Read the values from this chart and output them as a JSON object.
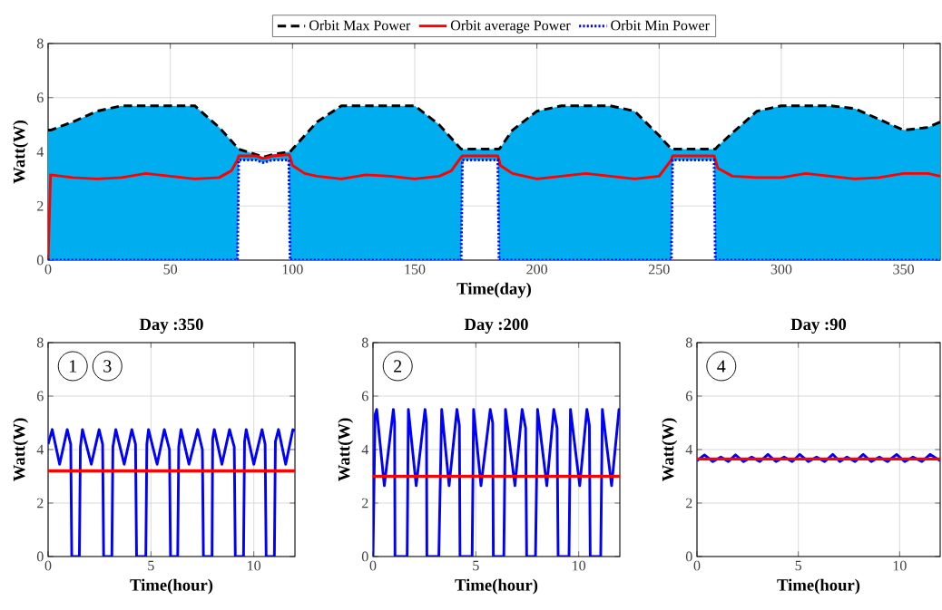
{
  "chart_data": [
    {
      "type": "line",
      "xlabel": "Time(day)",
      "ylabel": "Watt(W)",
      "xlim": [
        0,
        365
      ],
      "ylim": [
        0,
        8
      ],
      "xticks": [
        0,
        50,
        100,
        150,
        200,
        250,
        300,
        350
      ],
      "yticks": [
        0,
        2,
        4,
        6,
        8
      ],
      "grid": true,
      "legend": "top",
      "x": [
        0,
        1,
        10,
        20,
        30,
        40,
        50,
        60,
        70,
        75,
        77.5,
        78,
        85,
        88,
        92,
        98.5,
        99,
        100,
        105,
        110,
        120,
        130,
        140,
        150,
        160,
        165,
        169,
        169.5,
        175,
        180,
        184,
        184.5,
        185,
        190,
        200,
        210,
        220,
        230,
        240,
        250,
        255,
        255.5,
        260,
        265,
        272.5,
        273,
        274,
        280,
        290,
        300,
        310,
        320,
        330,
        340,
        350,
        360,
        365
      ],
      "series": [
        {
          "name": "Orbit Max Power",
          "color": "#000000",
          "line_style": "dashed",
          "values": [
            4.8,
            4.8,
            5.1,
            5.5,
            5.7,
            5.7,
            5.7,
            5.7,
            4.9,
            4.4,
            4.15,
            4.1,
            3.9,
            3.8,
            3.9,
            4.0,
            4.0,
            4.1,
            4.6,
            5.1,
            5.7,
            5.7,
            5.7,
            5.7,
            5.0,
            4.5,
            4.1,
            4.1,
            4.1,
            4.1,
            4.1,
            4.1,
            4.15,
            4.8,
            5.5,
            5.7,
            5.7,
            5.7,
            5.5,
            4.6,
            4.1,
            4.1,
            4.1,
            4.1,
            4.1,
            4.1,
            4.2,
            4.7,
            5.5,
            5.7,
            5.7,
            5.7,
            5.6,
            5.2,
            4.8,
            4.9,
            5.1
          ]
        },
        {
          "name": "Orbit average Power",
          "color": "#ff0000",
          "line_style": "solid",
          "lower": [
            0,
            0,
            0,
            0,
            0,
            0,
            0,
            0,
            0,
            0,
            0,
            3.7,
            3.7,
            3.6,
            3.7,
            3.7,
            0,
            0,
            0,
            0,
            0,
            0,
            0,
            0,
            0,
            0,
            0,
            3.7,
            3.7,
            3.7,
            3.7,
            0,
            0,
            0,
            0,
            0,
            0,
            0,
            0,
            0,
            0,
            3.7,
            3.7,
            3.7,
            3.7,
            0,
            0,
            0,
            0,
            0,
            0,
            0,
            0,
            0,
            0,
            0,
            0
          ],
          "upper": [
            4.8,
            4.8,
            5.1,
            5.5,
            5.7,
            5.7,
            5.7,
            5.7,
            4.9,
            4.4,
            4.15,
            4.1,
            3.9,
            3.8,
            3.9,
            4.0,
            4.0,
            4.1,
            4.6,
            5.1,
            5.7,
            5.7,
            5.7,
            5.7,
            5.0,
            4.5,
            4.1,
            4.1,
            4.1,
            4.1,
            4.1,
            4.1,
            4.15,
            4.8,
            5.5,
            5.7,
            5.7,
            5.7,
            5.5,
            4.6,
            4.1,
            4.1,
            4.1,
            4.1,
            4.1,
            4.1,
            4.2,
            4.7,
            5.5,
            5.7,
            5.7,
            5.7,
            5.6,
            5.2,
            4.8,
            4.9,
            5.1
          ],
          "values": [
            0,
            3.15,
            3.05,
            3.0,
            3.05,
            3.2,
            3.1,
            3.0,
            3.05,
            3.3,
            3.7,
            3.85,
            3.85,
            3.75,
            3.85,
            3.9,
            3.8,
            3.5,
            3.2,
            3.1,
            3.0,
            3.15,
            3.1,
            3.0,
            3.1,
            3.3,
            3.8,
            3.85,
            3.85,
            3.85,
            3.85,
            3.7,
            3.5,
            3.2,
            3.0,
            3.1,
            3.2,
            3.1,
            3.0,
            3.1,
            3.7,
            3.85,
            3.85,
            3.85,
            3.85,
            3.7,
            3.4,
            3.1,
            3.05,
            3.05,
            3.2,
            3.1,
            3.0,
            3.05,
            3.2,
            3.2,
            3.1
          ]
        },
        {
          "name": "Orbit Min Power",
          "color": "#0000ff",
          "line_style": "dotted",
          "values": [
            0,
            0,
            0,
            0,
            0,
            0,
            0,
            0,
            0,
            0,
            0,
            3.7,
            3.7,
            3.6,
            3.7,
            3.7,
            0,
            0,
            0,
            0,
            0,
            0,
            0,
            0,
            0,
            0,
            0,
            3.7,
            3.7,
            3.7,
            3.7,
            0,
            0,
            0,
            0,
            0,
            0,
            0,
            0,
            0,
            0,
            3.7,
            3.7,
            3.7,
            3.7,
            0,
            0,
            0,
            0,
            0,
            0,
            0,
            0,
            0,
            0,
            0,
            0
          ]
        }
      ]
    },
    {
      "type": "line",
      "title": "Day :350",
      "xlabel": "Time(hour)",
      "ylabel": "Watt(W)",
      "xlim": [
        0,
        12
      ],
      "ylim": [
        0,
        8
      ],
      "xticks": [
        0,
        5,
        10
      ],
      "yticks": [
        0,
        2,
        4,
        6,
        8
      ],
      "grid": true,
      "annotations": [
        "1",
        "3"
      ],
      "series": [
        {
          "color": "#0000ff",
          "x": [
            0,
            0.2,
            0.56,
            0.93,
            1.1,
            1.15,
            1.52,
            1.57,
            1.67,
            2.1,
            2.48,
            2.65,
            2.7,
            3.1,
            3.15,
            3.29,
            3.7,
            4.07,
            4.25,
            4.3,
            4.75,
            4.8,
            4.88,
            5.3,
            5.65,
            5.9,
            5.95,
            6.3,
            6.35,
            6.46,
            6.85,
            7.27,
            7.5,
            7.55,
            7.97,
            8.0,
            8.08,
            8.45,
            8.82,
            9.05,
            9.1,
            9.5,
            9.55,
            9.63,
            10.0,
            10.4,
            10.55,
            10.6,
            11.0,
            11.05,
            11.2,
            11.55,
            11.9,
            12
          ],
          "values": [
            4.2,
            4.75,
            3.45,
            4.75,
            4.2,
            0,
            0,
            4.1,
            4.75,
            3.45,
            4.75,
            4.2,
            0,
            0,
            4.1,
            4.75,
            3.45,
            4.75,
            4.2,
            0,
            0,
            4.2,
            4.75,
            3.45,
            4.75,
            4.0,
            0,
            0,
            4.1,
            4.75,
            3.45,
            4.75,
            4.0,
            0,
            0,
            4.4,
            4.75,
            3.45,
            4.75,
            4.1,
            0,
            0,
            4.3,
            4.75,
            3.45,
            4.75,
            4.2,
            0,
            0,
            4.3,
            4.75,
            3.45,
            4.75,
            4.7
          ]
        },
        {
          "color": "#ff0000",
          "x": [
            0,
            12
          ],
          "values": [
            3.2,
            3.2
          ]
        }
      ]
    },
    {
      "type": "line",
      "title": "Day :200",
      "xlabel": "Time(hour)",
      "ylabel": "Watt(W)",
      "xlim": [
        0,
        12
      ],
      "ylim": [
        0,
        8
      ],
      "xticks": [
        0,
        5,
        10
      ],
      "yticks": [
        0,
        2,
        4,
        6,
        8
      ],
      "grid": true,
      "annotations": [
        "2"
      ],
      "series": [
        {
          "color": "#0000ff",
          "x": [
            0,
            0.1,
            0.18,
            0.55,
            0.99,
            1.05,
            1.07,
            1.66,
            1.72,
            2.1,
            2.53,
            2.6,
            2.62,
            3.2,
            3.34,
            3.7,
            4.08,
            4.2,
            4.23,
            4.82,
            4.89,
            5.25,
            5.7,
            5.82,
            5.85,
            6.36,
            6.44,
            6.9,
            7.25,
            7.42,
            7.47,
            7.9,
            8.0,
            8.45,
            8.79,
            8.95,
            9.0,
            9.53,
            9.6,
            10.05,
            10.4,
            10.52,
            10.56,
            11.07,
            11.15,
            11.6,
            11.96,
            12
          ],
          "values": [
            0,
            5.3,
            5.5,
            2.65,
            5.5,
            5.0,
            0,
            0,
            5.5,
            2.65,
            5.5,
            5.0,
            0,
            0,
            5.5,
            2.65,
            5.5,
            4.9,
            0,
            0,
            5.5,
            2.65,
            5.5,
            5.0,
            0,
            0,
            5.5,
            2.65,
            5.5,
            4.8,
            0,
            0,
            5.5,
            2.65,
            5.5,
            4.8,
            0,
            0,
            5.5,
            2.65,
            5.5,
            4.9,
            0,
            0,
            5.5,
            2.65,
            5.5,
            5.5
          ]
        },
        {
          "color": "#ff0000",
          "x": [
            0,
            12
          ],
          "values": [
            3.0,
            3.0
          ]
        }
      ]
    },
    {
      "type": "line",
      "title": "Day :90",
      "xlabel": "Time(hour)",
      "ylabel": "Watt(W)",
      "xlim": [
        0,
        12
      ],
      "ylim": [
        0,
        8
      ],
      "xticks": [
        0,
        5,
        10
      ],
      "yticks": [
        0,
        2,
        4,
        6,
        8
      ],
      "grid": true,
      "annotations": [
        "4"
      ],
      "series": [
        {
          "color": "#0000ff",
          "x": [
            0,
            0.37,
            0.78,
            1.18,
            1.55,
            1.9,
            2.3,
            2.7,
            3.1,
            3.5,
            3.9,
            4.3,
            4.7,
            5.07,
            5.5,
            5.9,
            6.3,
            6.7,
            7.05,
            7.4,
            7.8,
            8.2,
            8.6,
            9.0,
            9.4,
            9.85,
            10.25,
            10.66,
            11.1,
            11.5,
            12
          ],
          "values": [
            3.58,
            3.8,
            3.55,
            3.72,
            3.55,
            3.8,
            3.55,
            3.72,
            3.55,
            3.82,
            3.55,
            3.72,
            3.55,
            3.82,
            3.55,
            3.72,
            3.55,
            3.82,
            3.55,
            3.72,
            3.55,
            3.82,
            3.55,
            3.72,
            3.55,
            3.82,
            3.55,
            3.72,
            3.55,
            3.82,
            3.58
          ]
        },
        {
          "color": "#ff0000",
          "x": [
            0,
            12
          ],
          "values": [
            3.65,
            3.65
          ]
        }
      ]
    }
  ]
}
